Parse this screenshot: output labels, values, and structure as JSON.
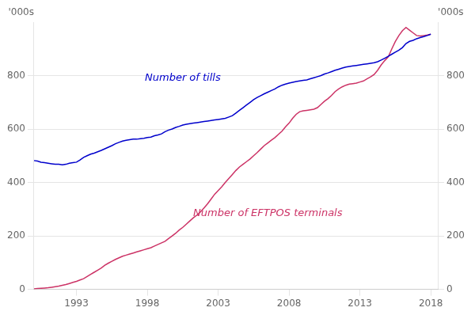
{
  "chart_data": {
    "type": "line",
    "x": [
      1990,
      1990.25,
      1990.5,
      1990.75,
      1991,
      1991.25,
      1991.5,
      1991.75,
      1992,
      1992.25,
      1992.5,
      1992.75,
      1993,
      1993.25,
      1993.5,
      1993.75,
      1994,
      1994.25,
      1994.5,
      1994.75,
      1995,
      1995.25,
      1995.5,
      1995.75,
      1996,
      1996.25,
      1996.5,
      1996.75,
      1997,
      1997.25,
      1997.5,
      1997.75,
      1998,
      1998.25,
      1998.5,
      1998.75,
      1999,
      1999.25,
      1999.5,
      1999.75,
      2000,
      2000.25,
      2000.5,
      2000.75,
      2001,
      2001.25,
      2001.5,
      2001.75,
      2002,
      2002.25,
      2002.5,
      2002.75,
      2003,
      2003.25,
      2003.5,
      2003.75,
      2004,
      2004.25,
      2004.5,
      2004.75,
      2005,
      2005.25,
      2005.5,
      2005.75,
      2006,
      2006.25,
      2006.5,
      2006.75,
      2007,
      2007.25,
      2007.5,
      2007.75,
      2008,
      2008.25,
      2008.5,
      2008.75,
      2009,
      2009.25,
      2009.5,
      2009.75,
      2010,
      2010.25,
      2010.5,
      2010.75,
      2011,
      2011.25,
      2011.5,
      2011.75,
      2012,
      2012.25,
      2012.5,
      2012.75,
      2013,
      2013.25,
      2013.5,
      2013.75,
      2014,
      2014.25,
      2014.5,
      2014.75,
      2015,
      2015.25,
      2015.5,
      2015.75,
      2016,
      2016.25,
      2016.5,
      2016.75,
      2017,
      2017.25,
      2017.5,
      2017.75,
      2018
    ],
    "series": [
      {
        "color": "#0000CC",
        "values": [
          482,
          480,
          476,
          474,
          472,
          470,
          468,
          468,
          466,
          468,
          472,
          474,
          476,
          484,
          494,
          500,
          506,
          510,
          515,
          520,
          526,
          532,
          538,
          545,
          550,
          555,
          558,
          560,
          562,
          562,
          564,
          565,
          568,
          570,
          575,
          578,
          582,
          590,
          596,
          600,
          606,
          610,
          615,
          618,
          620,
          622,
          624,
          626,
          628,
          630,
          632,
          634,
          636,
          638,
          640,
          645,
          650,
          660,
          670,
          680,
          690,
          700,
          710,
          718,
          725,
          732,
          738,
          744,
          750,
          758,
          764,
          768,
          772,
          775,
          778,
          780,
          782,
          784,
          788,
          792,
          796,
          800,
          806,
          810,
          815,
          820,
          824,
          828,
          832,
          834,
          836,
          838,
          840,
          842,
          844,
          846,
          848,
          852,
          858,
          865,
          872,
          880,
          888,
          895,
          905,
          920,
          928,
          932,
          938,
          942,
          946,
          950,
          955
        ]
      },
      {
        "color": "#CC3366",
        "axis": "y2",
        "values": [
          2,
          3,
          4,
          5,
          6,
          8,
          10,
          12,
          15,
          18,
          22,
          26,
          30,
          35,
          40,
          48,
          56,
          64,
          72,
          80,
          90,
          98,
          105,
          112,
          118,
          124,
          128,
          132,
          136,
          140,
          144,
          148,
          152,
          156,
          162,
          168,
          174,
          180,
          190,
          200,
          210,
          222,
          232,
          244,
          256,
          268,
          278,
          290,
          305,
          320,
          338,
          356,
          370,
          384,
          400,
          415,
          430,
          445,
          458,
          468,
          478,
          488,
          500,
          512,
          525,
          538,
          548,
          558,
          568,
          580,
          592,
          608,
          622,
          640,
          655,
          665,
          668,
          670,
          672,
          674,
          680,
          692,
          704,
          714,
          726,
          740,
          750,
          758,
          764,
          768,
          770,
          772,
          776,
          780,
          788,
          795,
          804,
          820,
          840,
          856,
          870,
          900,
          928,
          950,
          968,
          980,
          970,
          960,
          950,
          948,
          950,
          952,
          955
        ]
      }
    ],
    "xlim": [
      1990,
      2018.5
    ],
    "xticks": [
      1993,
      1998,
      2003,
      2008,
      2013,
      2018
    ],
    "ylim": [
      0,
      1000
    ],
    "yticks": [
      0,
      200,
      400,
      600,
      800
    ],
    "y2lim": [
      0,
      1000
    ],
    "y2ticks": [
      0,
      200,
      400,
      600,
      800
    ],
    "ylabel": "'000s",
    "y2label": "'000s",
    "grid": true,
    "annotations": [
      {
        "text": "Number of tills",
        "x": 2000.5,
        "y": 790,
        "color": "#0000CC"
      },
      {
        "text": "Number of EFTPOS terminals",
        "x": 2006.5,
        "y": 285,
        "color": "#CC3366"
      }
    ]
  }
}
